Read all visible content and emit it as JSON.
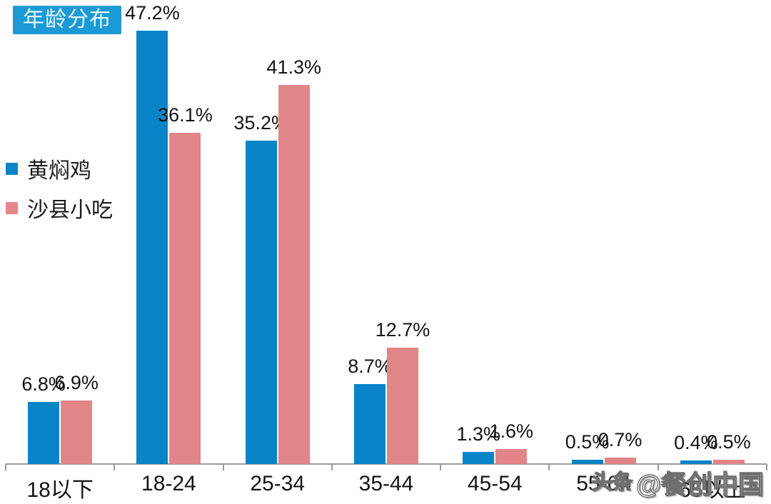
{
  "title": "年龄分布",
  "legend": {
    "items": [
      {
        "label": "黄焖鸡",
        "color": "#0a84c8"
      },
      {
        "label": "沙县小吃",
        "color": "#e8858c"
      }
    ]
  },
  "watermark": {
    "prefix": "头条",
    "handle": "@餐创中国"
  },
  "colors": {
    "series_blue": "#0a84c8",
    "series_pink": "#e28589",
    "title_bg": "#1b9ad6",
    "title_text": "#e8f8ff",
    "axis": "#9b9b9b",
    "label_text": "#141414"
  },
  "chart_data": {
    "type": "bar",
    "title": "年龄分布",
    "categories": [
      "18以下",
      "18-24",
      "25-34",
      "35-44",
      "45-54",
      "55-64",
      "65以上"
    ],
    "series": [
      {
        "name": "黄焖鸡",
        "key": "huangmenji",
        "color": "#0a84c8",
        "values": [
          6.8,
          47.2,
          35.2,
          8.7,
          1.3,
          0.5,
          0.4
        ]
      },
      {
        "name": "沙县小吃",
        "key": "shaxianxiaochi",
        "color": "#e28589",
        "values": [
          6.9,
          36.1,
          41.3,
          12.7,
          1.6,
          0.7,
          0.5
        ]
      }
    ],
    "value_suffix": "%",
    "value_decimals": 1,
    "xlabel": "",
    "ylabel": "",
    "ylim": [
      0,
      50
    ],
    "grid": false,
    "legend_position": "left",
    "data_labels": true
  }
}
